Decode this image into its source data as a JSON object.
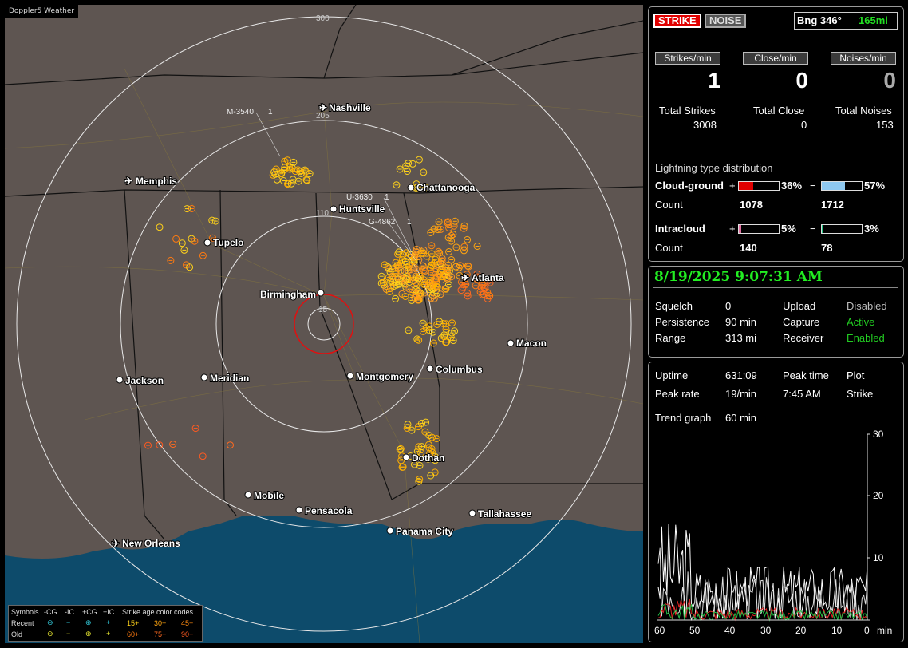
{
  "map": {
    "title": "Doppler5 Weather",
    "ring_labels": [
      "300",
      "205",
      "110",
      "15"
    ],
    "cities": [
      {
        "name": "Nashville",
        "airport": true
      },
      {
        "name": "Memphis",
        "airport": true
      },
      {
        "name": "Chattanooga",
        "airport": false
      },
      {
        "name": "Huntsville",
        "airport": false
      },
      {
        "name": "Tupelo",
        "airport": false
      },
      {
        "name": "Atlanta",
        "airport": true
      },
      {
        "name": "Birmingham",
        "airport": false
      },
      {
        "name": "Macon",
        "airport": false
      },
      {
        "name": "Jackson",
        "airport": false
      },
      {
        "name": "Meridian",
        "airport": false
      },
      {
        "name": "Montgomery",
        "airport": false
      },
      {
        "name": "Columbus",
        "airport": false
      },
      {
        "name": "Dothan",
        "airport": false
      },
      {
        "name": "Mobile",
        "airport": false
      },
      {
        "name": "Pensacola",
        "airport": false
      },
      {
        "name": "Tallahassee",
        "airport": false
      },
      {
        "name": "Panama City",
        "airport": false
      },
      {
        "name": "New Orleans",
        "airport": true
      }
    ],
    "stations": [
      "M-3540",
      "U-3630",
      "G-4862"
    ],
    "station_suffix": "1",
    "legend": {
      "symbols_label": "Symbols",
      "cols": [
        "-CG",
        "-IC",
        "+CG",
        "+IC"
      ],
      "recent": "Recent",
      "old": "Old",
      "age_title": "Strike age color codes",
      "recent_ages": [
        "15+",
        "30+",
        "45+"
      ],
      "old_ages": [
        "60+",
        "75+",
        "90+"
      ]
    }
  },
  "top_panel": {
    "strike_btn": "STRIKE",
    "noise_btn": "NOISE",
    "bearing_label": "Bng 346°",
    "bearing_range": "165mi",
    "headers": [
      "Strikes/min",
      "Close/min",
      "Noises/min"
    ],
    "values": [
      "1",
      "0",
      "0"
    ],
    "totals_labels": [
      "Total Strikes",
      "Total Close",
      "Total Noises"
    ],
    "totals_values": [
      "3008",
      "0",
      "153"
    ],
    "dist_title": "Lightning type distribution",
    "cloud_ground": "Cloud-ground",
    "intracloud": "Intracloud",
    "count": "Count",
    "plus": "+",
    "minus": "−",
    "cg_plus_pct": "36%",
    "cg_minus_pct": "57%",
    "cg_plus_count": "1078",
    "cg_minus_count": "1712",
    "ic_plus_pct": "5%",
    "ic_minus_pct": "3%",
    "ic_plus_count": "140",
    "ic_minus_count": "78",
    "bars": {
      "cg_plus": 0.36,
      "cg_minus": 0.57,
      "ic_plus": 0.05,
      "ic_minus": 0.03
    },
    "colors": {
      "cg_plus": "#e00000",
      "cg_minus": "#8ec8f0",
      "ic_plus": "#e070a0",
      "ic_minus": "#20c080"
    }
  },
  "status_panel": {
    "datetime": "8/19/2025 9:07:31 AM",
    "rows": [
      {
        "k": "Squelch",
        "v": "0",
        "k2": "Upload",
        "v2": "Disabled",
        "v2color": "#bbbbbb"
      },
      {
        "k": "Persistence",
        "v": "90 min",
        "k2": "Capture",
        "v2": "Active",
        "v2color": "#22cc22"
      },
      {
        "k": "Range",
        "v": "313 mi",
        "k2": "Receiver",
        "v2": "Enabled",
        "v2color": "#22cc22"
      }
    ]
  },
  "trend_panel": {
    "uptime_label": "Uptime",
    "uptime": "631:09",
    "peak_time_label": "Peak time",
    "plot_label": "Plot",
    "peak_rate_label": "Peak rate",
    "peak_rate": "19/min",
    "peak_time": "7:45 AM",
    "plot": "Strike",
    "trend_label": "Trend graph",
    "trend_value": "60 min",
    "y_ticks": [
      "30",
      "20",
      "10"
    ],
    "x_ticks": [
      "60",
      "50",
      "40",
      "30",
      "20",
      "10",
      "0"
    ],
    "x_unit": "min"
  }
}
